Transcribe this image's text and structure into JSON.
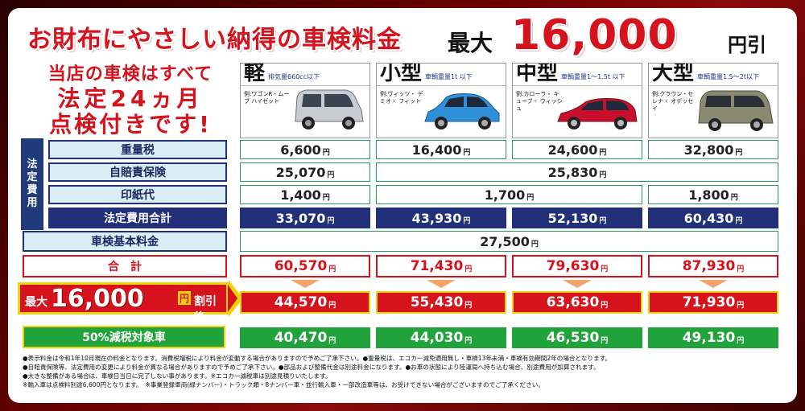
{
  "header": {
    "title": "お財布にやさしい納得の車検料金",
    "max_prefix": "最大",
    "amount": "16,000",
    "suffix": "円引"
  },
  "callout": {
    "line1": "当店の車検はすべて",
    "line2": "法定24ヵ月",
    "line3": "点検付きです!"
  },
  "cars": [
    {
      "name": "軽",
      "weight": "排気量660cc以下",
      "example": "例:ワゴンR・ムーブ ハイゼット",
      "color": "#c8ccd2"
    },
    {
      "name": "小型",
      "weight": "車輌重量1t 以下",
      "example": "例:ヴィッツ・ デミオ・ フィット",
      "color": "#2f8fd8"
    },
    {
      "name": "中型",
      "weight": "車輌重量1～1.5t 以下",
      "example": "例:カローラ・ キューブ・ ウィッシュ",
      "color": "#c8102e"
    },
    {
      "name": "大型",
      "weight": "車輌重量1.5～2t以下",
      "example": "例:クラウン・セレナ・ オデッセイ",
      "color": "#8a8a72"
    }
  ],
  "sidebar_label": [
    "法",
    "定",
    "費",
    "用"
  ],
  "rows": {
    "weight_tax": {
      "label": "重量税",
      "values": [
        "6,600",
        "16,400",
        "24,600",
        "32,800"
      ]
    },
    "insurance": {
      "label": "自賠責保険",
      "values": [
        "25,070",
        "25,830"
      ]
    },
    "stamp": {
      "label": "印紙代",
      "values": [
        "1,400",
        "1,700",
        "1,800"
      ]
    },
    "legal_total": {
      "label": "法定費用合計",
      "values": [
        "33,070",
        "43,930",
        "52,130",
        "60,430"
      ]
    },
    "base_fee": {
      "label": "車検基本料金",
      "values": [
        "27,500"
      ]
    },
    "total": {
      "label": "合　計",
      "values": [
        "60,570",
        "71,430",
        "79,630",
        "87,930"
      ]
    },
    "discounted": {
      "label_prefix": "最大",
      "label_amount": "16,000",
      "label_unit": "円",
      "label_after": "割引後",
      "values": [
        "44,570",
        "55,430",
        "63,630",
        "71,930"
      ]
    },
    "eco": {
      "label": "50%減税対象車",
      "values": [
        "40,470",
        "44,030",
        "46,530",
        "49,130"
      ]
    }
  },
  "yen": "円",
  "notes": [
    "●表示料金は令和1年10月現在の料金となります。消費税増税により料金が変動する場合がありますので予めご了承下さい。●重量税は、エコカー減免適用無し・車検13年未満・車検有効期間2年の場合となります。",
    "●自賠責保険等、法定費用の変更により料金が異なる場合がありますので予めご了承下さい。●部品および整備代金は別途料金になります。●お車の状態により陸運局へ持ち込む場合、別途費用が加算されます。",
    "●大きな整備がある場合は、車検日当日に完了しない事があります。※エコカー減税車は別途見積りいたします。",
    "※輸入車は点検料別途6,600円となります。　※事業登録車両(緑ナンバー)・トラック類・8ナンバー車・並行輸入車・一部改造車等は、お受けできない場合がございますのでご了承ください。"
  ]
}
